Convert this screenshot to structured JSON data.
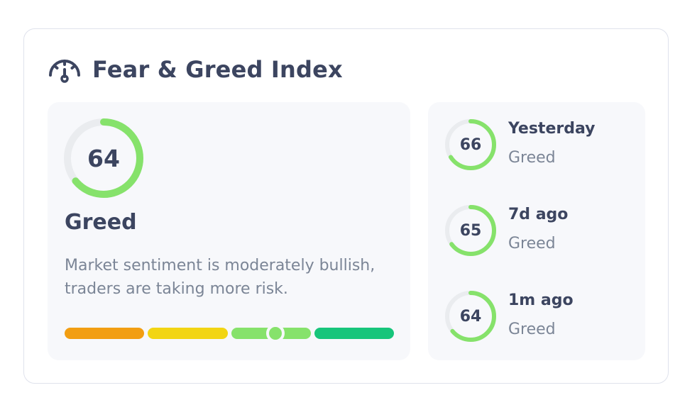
{
  "header": {
    "icon": "gauge-icon",
    "title": "Fear & Greed Index"
  },
  "current": {
    "value": "64",
    "score": 64,
    "label": "Greed",
    "description": "Market sentiment is moderately bullish, traders are taking more risk."
  },
  "scale": {
    "segments": [
      {
        "name": "extreme-fear",
        "color": "#f29e12"
      },
      {
        "name": "fear",
        "color": "#f2d513"
      },
      {
        "name": "greed",
        "color": "#86e26b"
      },
      {
        "name": "extreme-greed",
        "color": "#17c57b"
      }
    ],
    "indicator_fraction": 0.64
  },
  "history": [
    {
      "period": "Yesterday",
      "value": "66",
      "score": 66,
      "label": "Greed"
    },
    {
      "period": "7d ago",
      "value": "65",
      "score": 65,
      "label": "Greed"
    },
    {
      "period": "1m ago",
      "value": "64",
      "score": 64,
      "label": "Greed"
    }
  ],
  "colors": {
    "greed": "#86e26b",
    "track": "#eaecef",
    "text_primary": "#3c4560",
    "text_secondary": "#7b8596"
  }
}
